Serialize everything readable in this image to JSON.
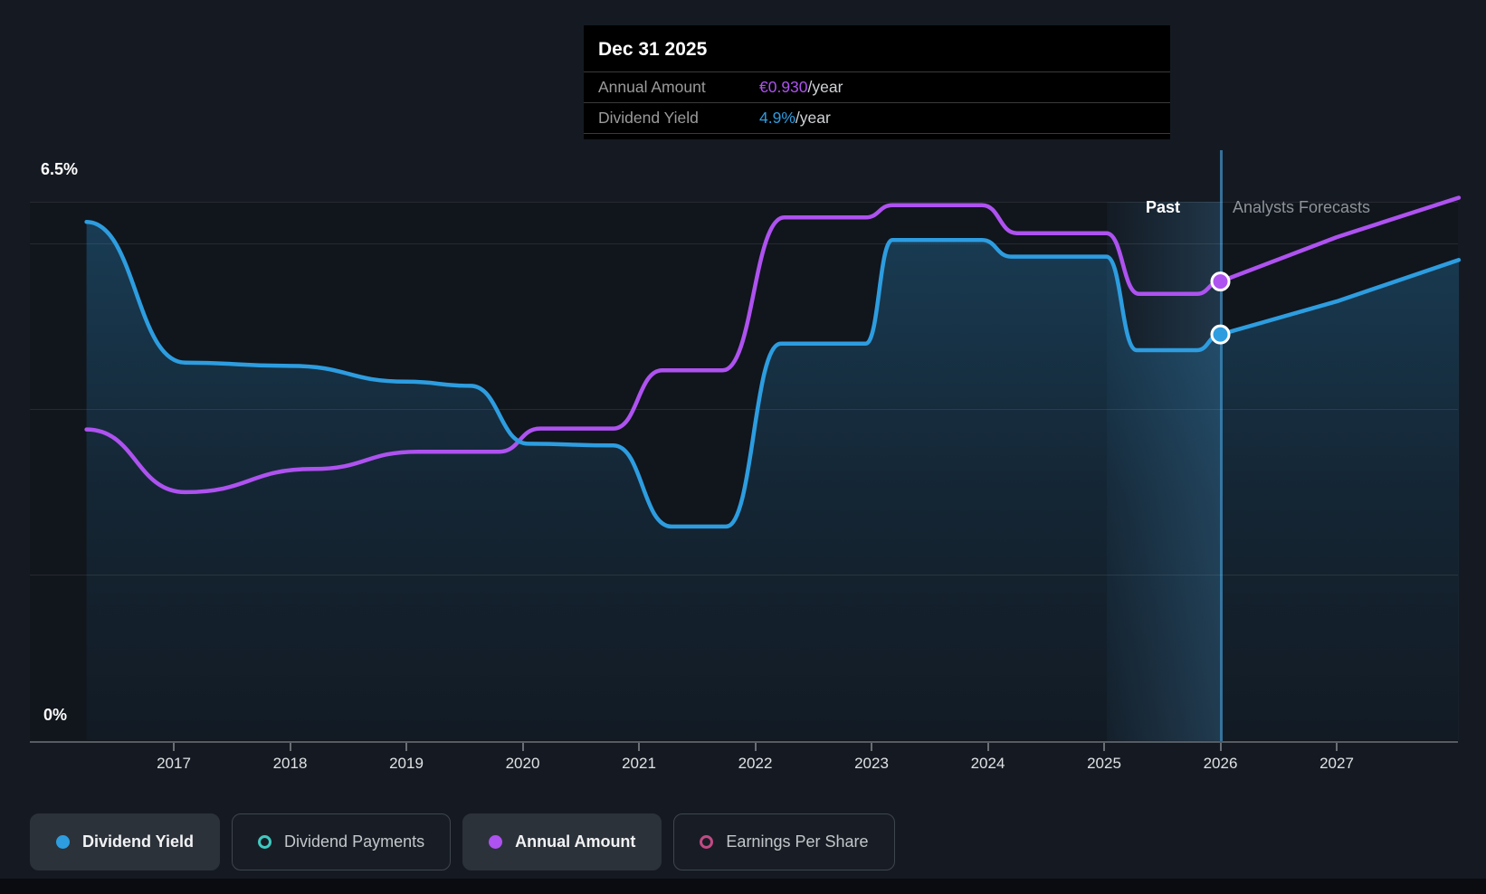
{
  "colors": {
    "background": "#151a22",
    "dividend_yield_blue": "#2d9de0",
    "annual_amount_purple": "#ae52f0",
    "dividend_payments_teal": "#3fc9c0",
    "earnings_per_share_pink": "#c04a84",
    "divider_line": "#3a7aa6",
    "gridline": "rgba(255,255,255,0.09)",
    "tooltip_background": "#000000"
  },
  "tooltip": {
    "date": "Dec 31 2025",
    "rows": [
      {
        "label": "Annual Amount",
        "value": "€0.930",
        "suffix": "/year",
        "value_color": "#ae52f0"
      },
      {
        "label": "Dividend Yield",
        "value": "4.9%",
        "suffix": "/year",
        "value_color": "#2d9de0"
      }
    ]
  },
  "axes": {
    "y_top_label": "6.5%",
    "y_bottom_label": "0%",
    "x_ticks": [
      "2017",
      "2018",
      "2019",
      "2020",
      "2021",
      "2022",
      "2023",
      "2024",
      "2025",
      "2026",
      "2027"
    ]
  },
  "period_labels": {
    "past": "Past",
    "forecast": "Analysts Forecasts"
  },
  "legend": [
    {
      "label": "Dividend Yield",
      "color": "#2d9de0",
      "style": "filled",
      "active": true
    },
    {
      "label": "Dividend Payments",
      "color": "#3fc9c0",
      "style": "outline",
      "active": false
    },
    {
      "label": "Annual Amount",
      "color": "#ae52f0",
      "style": "filled",
      "active": true
    },
    {
      "label": "Earnings Per Share",
      "color": "#c04a84",
      "style": "outline",
      "active": false
    }
  ],
  "chart_data": {
    "type": "line",
    "x_range": [
      2016.25,
      2028.05
    ],
    "x_tick_years": [
      2017,
      2018,
      2019,
      2020,
      2021,
      2022,
      2023,
      2024,
      2025,
      2026,
      2027
    ],
    "y_axis": {
      "unit": "%",
      "min": 0,
      "max": 6.5,
      "gridline_values": [
        2,
        4,
        6,
        6.5
      ],
      "shown_tick_labels": [
        "0%",
        "6.5%"
      ]
    },
    "divider": {
      "x": 2026.0,
      "date": "Dec 31 2025",
      "past_label": "Past",
      "forecast_label": "Analysts Forecasts"
    },
    "series": [
      {
        "name": "Dividend Yield",
        "unit": "%",
        "color": "#2d9de0",
        "area_fill": true,
        "points": [
          [
            2016.25,
            6.26
          ],
          [
            2017.1,
            4.56
          ],
          [
            2018.0,
            4.52
          ],
          [
            2019.0,
            4.33
          ],
          [
            2019.55,
            4.28
          ],
          [
            2020.05,
            3.58
          ],
          [
            2020.78,
            3.56
          ],
          [
            2021.28,
            2.58
          ],
          [
            2021.75,
            2.58
          ],
          [
            2022.22,
            4.79
          ],
          [
            2022.95,
            4.79
          ],
          [
            2023.18,
            6.04
          ],
          [
            2023.95,
            6.04
          ],
          [
            2024.2,
            5.84
          ],
          [
            2025.02,
            5.84
          ],
          [
            2025.28,
            4.71
          ],
          [
            2025.8,
            4.71
          ],
          [
            2026.0,
            4.9
          ],
          [
            2027.0,
            5.3
          ],
          [
            2028.05,
            5.8
          ]
        ]
      },
      {
        "name": "Annual Amount",
        "unit": "€/year",
        "color": "#ae52f0",
        "area_fill": false,
        "points": [
          [
            2016.25,
            0.63
          ],
          [
            2017.1,
            0.503
          ],
          [
            2018.2,
            0.55
          ],
          [
            2019.1,
            0.585
          ],
          [
            2019.8,
            0.585
          ],
          [
            2020.15,
            0.632
          ],
          [
            2020.78,
            0.632
          ],
          [
            2021.2,
            0.75
          ],
          [
            2021.72,
            0.75
          ],
          [
            2022.25,
            1.06
          ],
          [
            2022.95,
            1.06
          ],
          [
            2023.18,
            1.085
          ],
          [
            2023.95,
            1.085
          ],
          [
            2024.25,
            1.028
          ],
          [
            2025.02,
            1.028
          ],
          [
            2025.3,
            0.905
          ],
          [
            2025.8,
            0.905
          ],
          [
            2026.0,
            0.93
          ],
          [
            2027.0,
            1.02
          ],
          [
            2028.05,
            1.1
          ]
        ]
      }
    ],
    "markers": [
      {
        "series": "Annual Amount",
        "x": 2026.0,
        "value": 0.93,
        "display": "€0.930/year"
      },
      {
        "series": "Dividend Yield",
        "x": 2026.0,
        "value": 4.9,
        "display": "4.9%/year"
      }
    ],
    "legend_position": "bottom-left",
    "grid": true
  }
}
